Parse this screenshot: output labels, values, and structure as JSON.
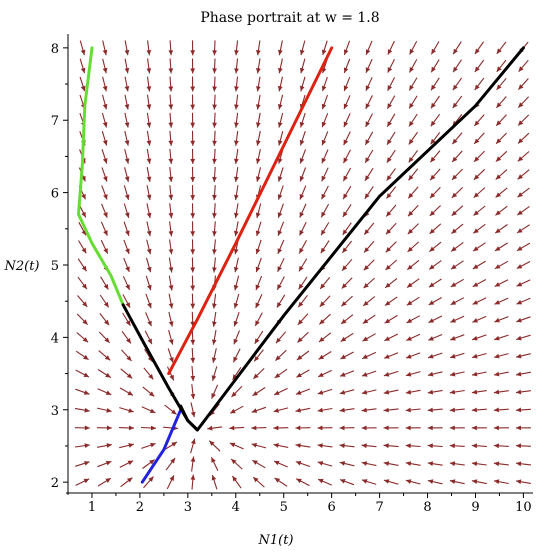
{
  "chart_data": {
    "type": "line",
    "title": "Phase portrait at w = 1.8",
    "xlabel": "N1(t)",
    "ylabel": "N2(t)",
    "xlim": [
      0.5,
      10.2
    ],
    "ylim": [
      1.85,
      8.15
    ],
    "x_ticks": [
      1,
      2,
      3,
      4,
      5,
      6,
      7,
      8,
      9,
      10
    ],
    "y_ticks": [
      2,
      3,
      4,
      5,
      6,
      7,
      8
    ],
    "grid": false,
    "vector_field": {
      "color": "#8b2a2a",
      "x_range": [
        0.8,
        10.0
      ],
      "y_range": [
        2.0,
        8.0
      ],
      "nx": 21,
      "ny": 25
    },
    "series": [
      {
        "color": "#66dd33",
        "x": [
          1.0,
          0.85,
          0.8,
          0.72,
          1.0,
          1.4,
          1.65
        ],
        "y": [
          8.0,
          7.2,
          6.4,
          5.7,
          5.3,
          4.85,
          4.45
        ]
      },
      {
        "color": "#dd2211",
        "x": [
          6.0,
          5.0,
          4.0,
          3.2,
          2.6
        ],
        "y": [
          8.0,
          6.65,
          5.3,
          4.25,
          3.5
        ]
      },
      {
        "color": "#2222dd",
        "x": [
          2.05,
          2.5,
          2.85
        ],
        "y": [
          2.0,
          2.45,
          3.0
        ]
      },
      {
        "color": "#000000",
        "x": [
          1.65,
          2.1,
          2.6,
          3.0,
          3.2,
          5.0,
          7.0,
          9.0,
          10.0
        ],
        "y": [
          4.45,
          3.9,
          3.3,
          2.85,
          2.72,
          4.3,
          5.95,
          7.2,
          8.0
        ]
      },
      {
        "color": "#000000",
        "x": [
          2.85,
          3.0,
          3.2
        ],
        "y": [
          3.05,
          2.85,
          2.72
        ]
      }
    ]
  }
}
